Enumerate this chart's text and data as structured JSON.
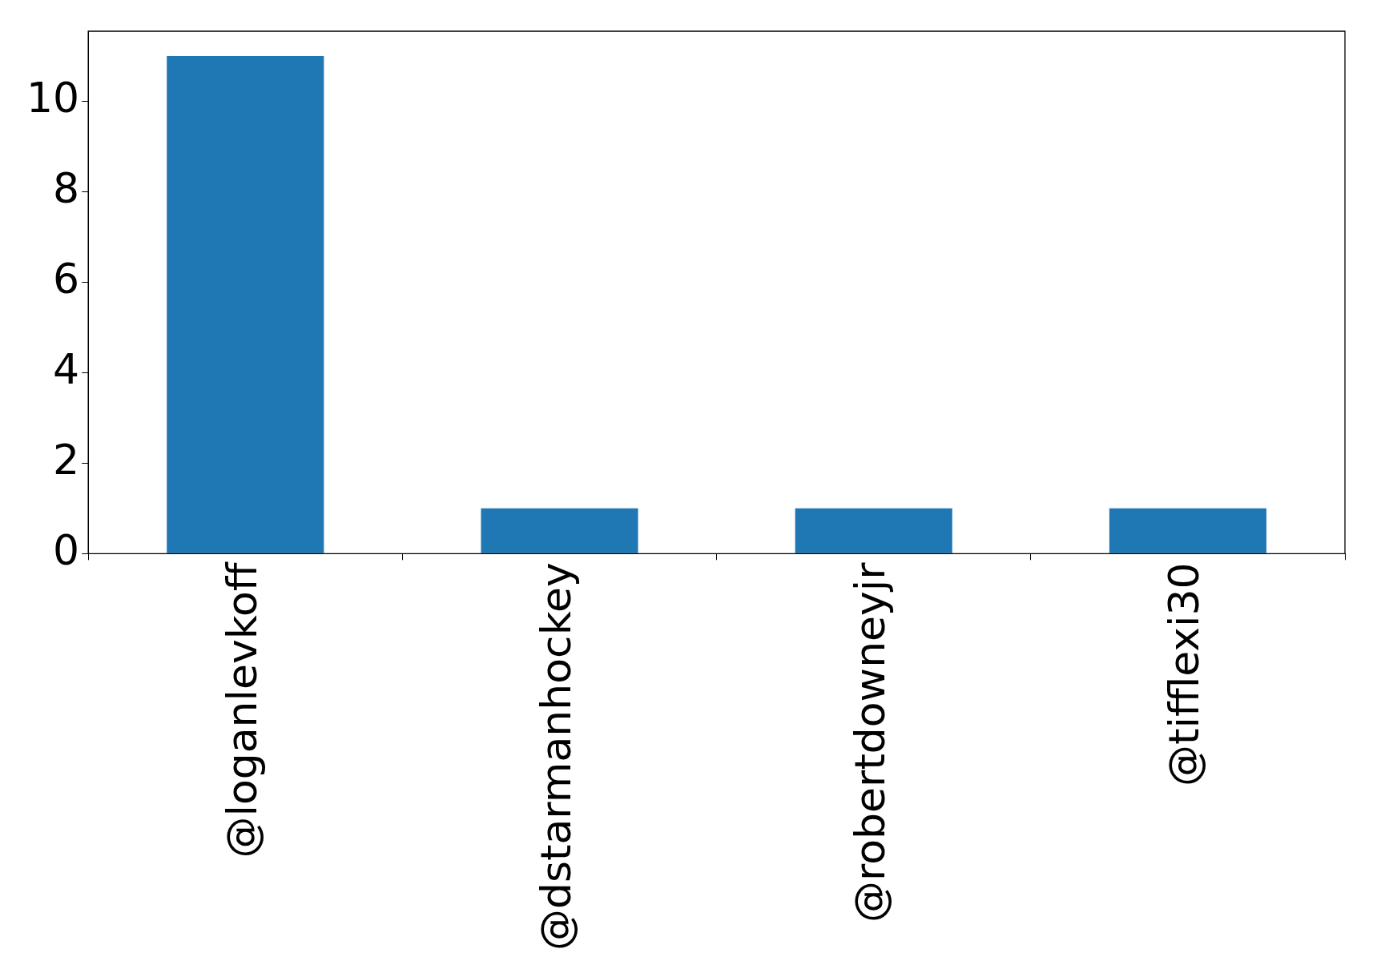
{
  "chart_data": {
    "type": "bar",
    "categories": [
      "@loganlevkoff",
      "@dstarmanhockey",
      "@robertdowneyjr",
      "@tifflexi30"
    ],
    "values": [
      11,
      1,
      1,
      1
    ],
    "color": "#1f77b4",
    "ylim": [
      0,
      11.55
    ],
    "yticks": [
      0,
      2,
      4,
      6,
      8,
      10
    ],
    "grid": false
  }
}
